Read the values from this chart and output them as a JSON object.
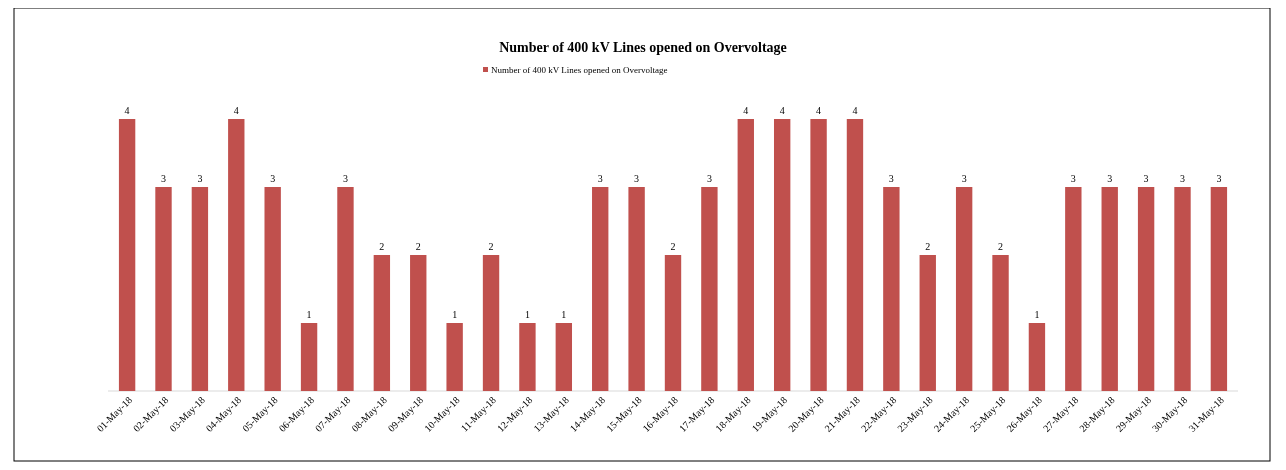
{
  "chart_data": {
    "type": "bar",
    "title": "Number of 400 kV Lines opened on Overvoltage",
    "categories": [
      "01-May-18",
      "02-May-18",
      "03-May-18",
      "04-May-18",
      "05-May-18",
      "06-May-18",
      "07-May-18",
      "08-May-18",
      "09-May-18",
      "10-May-18",
      "11-May-18",
      "12-May-18",
      "13-May-18",
      "14-May-18",
      "15-May-18",
      "16-May-18",
      "17-May-18",
      "18-May-18",
      "19-May-18",
      "20-May-18",
      "21-May-18",
      "22-May-18",
      "23-May-18",
      "24-May-18",
      "25-May-18",
      "26-May-18",
      "27-May-18",
      "28-May-18",
      "29-May-18",
      "30-May-18",
      "31-May-18"
    ],
    "series": [
      {
        "name": "Number of 400 kV Lines opened on Overvoltage",
        "color": "#c0504d",
        "values": [
          4,
          3,
          3,
          4,
          3,
          1,
          3,
          2,
          2,
          1,
          2,
          1,
          1,
          3,
          3,
          2,
          3,
          4,
          4,
          4,
          4,
          3,
          2,
          3,
          2,
          1,
          3,
          3,
          3,
          3,
          3
        ]
      }
    ],
    "data_labels": true,
    "legend": "top",
    "tick_labels": "x"
  }
}
